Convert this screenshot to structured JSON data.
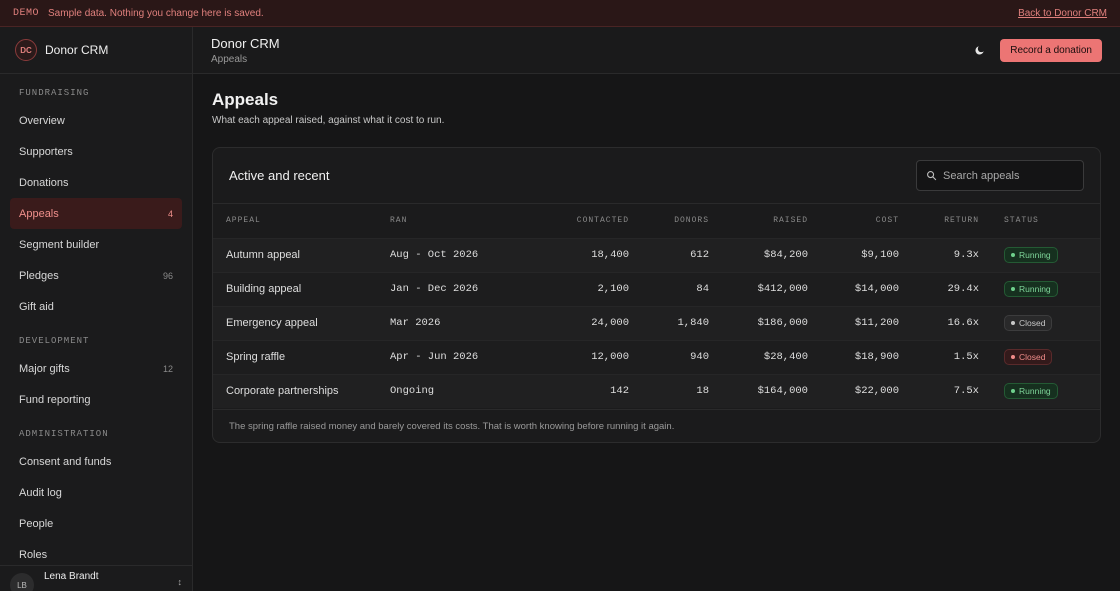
{
  "banner": {
    "tag": "DEMO",
    "message": "Sample data. Nothing you change here is saved.",
    "link": "Back to Donor CRM"
  },
  "brand": {
    "initials": "DC",
    "name": "Donor CRM"
  },
  "sidebar": {
    "sections": [
      {
        "label": "FUNDRAISING",
        "items": [
          {
            "label": "Overview",
            "count": ""
          },
          {
            "label": "Supporters",
            "count": ""
          },
          {
            "label": "Donations",
            "count": ""
          },
          {
            "label": "Appeals",
            "count": "4",
            "active": true
          },
          {
            "label": "Segment builder",
            "count": ""
          },
          {
            "label": "Pledges",
            "count": "96"
          },
          {
            "label": "Gift aid",
            "count": ""
          }
        ]
      },
      {
        "label": "DEVELOPMENT",
        "items": [
          {
            "label": "Major gifts",
            "count": "12"
          },
          {
            "label": "Fund reporting",
            "count": ""
          }
        ]
      },
      {
        "label": "ADMINISTRATION",
        "items": [
          {
            "label": "Consent and funds",
            "count": ""
          },
          {
            "label": "Audit log",
            "count": ""
          },
          {
            "label": "People",
            "count": ""
          },
          {
            "label": "Roles",
            "count": ""
          }
        ]
      }
    ],
    "user": {
      "initials": "LB",
      "name": "Lena Brandt"
    }
  },
  "header": {
    "title": "Donor CRM",
    "breadcrumb": "Appeals",
    "primary_action": "Record a donation",
    "theme_icon": "moon-icon"
  },
  "page": {
    "title": "Appeals",
    "subtitle": "What each appeal raised, against what it cost to run."
  },
  "card": {
    "title": "Active and recent",
    "search_placeholder": "Search appeals",
    "columns": [
      "APPEAL",
      "RAN",
      "CONTACTED",
      "DONORS",
      "RAISED",
      "COST",
      "RETURN",
      "STATUS"
    ],
    "rows": [
      {
        "appeal": "Autumn appeal",
        "ran": "Aug - Oct 2026",
        "contacted": "18,400",
        "donors": "612",
        "raised": "$84,200",
        "cost": "$9,100",
        "return": "9.3x",
        "status": "Running",
        "status_style": "running"
      },
      {
        "appeal": "Building appeal",
        "ran": "Jan - Dec 2026",
        "contacted": "2,100",
        "donors": "84",
        "raised": "$412,000",
        "cost": "$14,000",
        "return": "29.4x",
        "status": "Running",
        "status_style": "running"
      },
      {
        "appeal": "Emergency appeal",
        "ran": "Mar 2026",
        "contacted": "24,000",
        "donors": "1,840",
        "raised": "$186,000",
        "cost": "$11,200",
        "return": "16.6x",
        "status": "Closed",
        "status_style": "closed"
      },
      {
        "appeal": "Spring raffle",
        "ran": "Apr - Jun 2026",
        "contacted": "12,000",
        "donors": "940",
        "raised": "$28,400",
        "cost": "$18,900",
        "return": "1.5x",
        "status": "Closed",
        "status_style": "closed-red"
      },
      {
        "appeal": "Corporate partnerships",
        "ran": "Ongoing",
        "contacted": "142",
        "donors": "18",
        "raised": "$164,000",
        "cost": "$22,000",
        "return": "7.5x",
        "status": "Running",
        "status_style": "running"
      }
    ],
    "footnote": "The spring raffle raised money and barely covered its costs. That is worth knowing before running it again."
  },
  "colors": {
    "accent": "#ec7574",
    "running": "#7fd69a",
    "closed": "#c8c8c8",
    "closed_alert": "#f08c8a"
  }
}
